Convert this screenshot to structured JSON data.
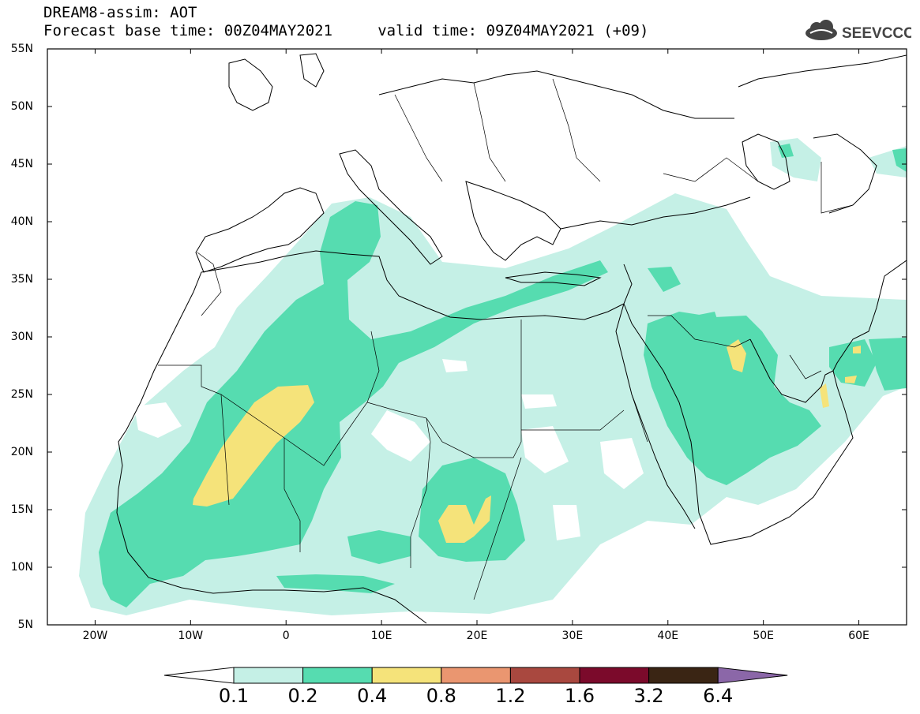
{
  "header": {
    "line1": "DREAM8-assim: AOT",
    "line2": "Forecast base time: 00Z04MAY2021     valid time: 09Z04MAY2021 (+09)"
  },
  "logo": {
    "text": "SEEVCCC",
    "icon": "cloud-icon"
  },
  "map": {
    "lon_range": [
      -25,
      65
    ],
    "lat_range": [
      5,
      55
    ],
    "lat_ticks": [
      "55N",
      "50N",
      "45N",
      "40N",
      "35N",
      "30N",
      "25N",
      "20N",
      "15N",
      "10N",
      "5N"
    ],
    "lon_ticks": [
      "20W",
      "10W",
      "0",
      "10E",
      "20E",
      "30E",
      "40E",
      "50E",
      "60E"
    ]
  },
  "colorbar": {
    "levels": [
      "0.1",
      "0.2",
      "0.4",
      "0.8",
      "1.2",
      "1.6",
      "3.2",
      "6.4"
    ],
    "colors": [
      "#ffffff",
      "#c5f0e6",
      "#56dcb0",
      "#f5e37a",
      "#ea9670",
      "#a9483f",
      "#7b0a2b",
      "#3a2514",
      "#8b67a8"
    ]
  }
}
